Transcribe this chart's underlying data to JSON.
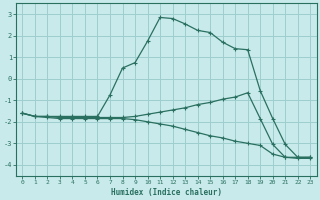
{
  "xlabel": "Humidex (Indice chaleur)",
  "background_color": "#c8eaea",
  "grid_color": "#9ecece",
  "line_color": "#2a7060",
  "xlim": [
    -0.5,
    23.5
  ],
  "ylim": [
    -4.5,
    3.5
  ],
  "xticks": [
    0,
    1,
    2,
    3,
    4,
    5,
    6,
    7,
    8,
    9,
    10,
    11,
    12,
    13,
    14,
    15,
    16,
    17,
    18,
    19,
    20,
    21,
    22,
    23
  ],
  "yticks": [
    -4,
    -3,
    -2,
    -1,
    0,
    1,
    2,
    3
  ],
  "curve1_x": [
    0,
    1,
    2,
    3,
    4,
    5,
    6,
    7,
    8,
    9,
    10,
    11,
    12,
    13,
    14,
    15,
    16,
    17,
    18,
    19,
    20,
    21,
    22,
    23
  ],
  "curve1_y": [
    -1.6,
    -1.75,
    -1.75,
    -1.75,
    -1.75,
    -1.75,
    -1.75,
    -0.75,
    0.5,
    0.75,
    1.75,
    2.85,
    2.8,
    2.55,
    2.25,
    2.15,
    1.7,
    1.4,
    1.35,
    -0.55,
    -1.85,
    -3.05,
    -3.65,
    -3.65
  ],
  "curve2_x": [
    0,
    1,
    2,
    3,
    4,
    5,
    6,
    7,
    8,
    9,
    10,
    11,
    12,
    13,
    14,
    15,
    16,
    17,
    18,
    19,
    20,
    21,
    22,
    23
  ],
  "curve2_y": [
    -1.6,
    -1.75,
    -1.75,
    -1.8,
    -1.8,
    -1.8,
    -1.8,
    -1.8,
    -1.8,
    -1.75,
    -1.65,
    -1.55,
    -1.45,
    -1.35,
    -1.2,
    -1.1,
    -0.95,
    -0.85,
    -0.65,
    -1.85,
    -3.05,
    -3.65,
    -3.65,
    -3.65
  ],
  "curve3_x": [
    0,
    1,
    2,
    3,
    4,
    5,
    6,
    7,
    8,
    9,
    10,
    11,
    12,
    13,
    14,
    15,
    16,
    17,
    18,
    19,
    20,
    21,
    22,
    23
  ],
  "curve3_y": [
    -1.6,
    -1.75,
    -1.8,
    -1.85,
    -1.85,
    -1.85,
    -1.85,
    -1.85,
    -1.85,
    -1.9,
    -2.0,
    -2.1,
    -2.2,
    -2.35,
    -2.5,
    -2.65,
    -2.75,
    -2.9,
    -3.0,
    -3.1,
    -3.5,
    -3.65,
    -3.7,
    -3.7
  ]
}
